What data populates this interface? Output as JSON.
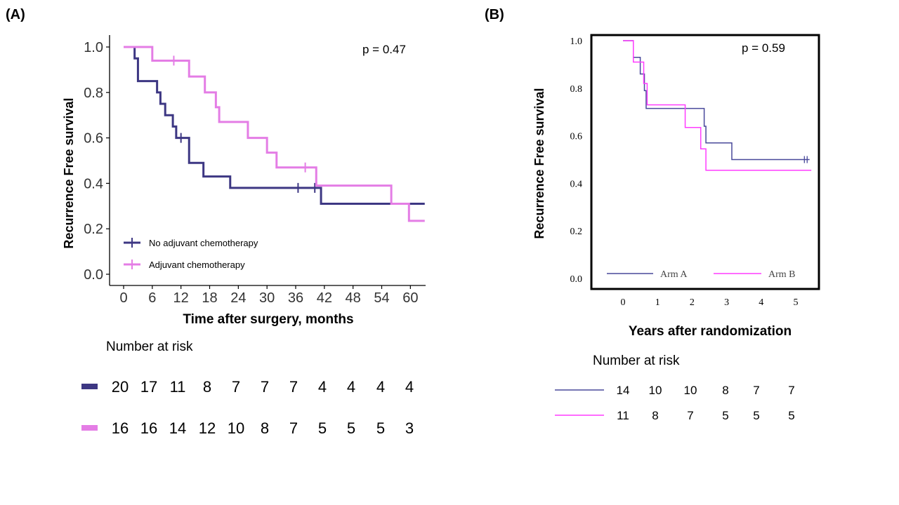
{
  "panels": {
    "a_label": "(A)",
    "b_label": "(B)"
  },
  "colors": {
    "a_s1": "#3d3783",
    "a_s2": "#e47de5",
    "b_s1": "#48489a",
    "b_s2": "#ff3cff"
  },
  "chart_data": [
    {
      "type": "line",
      "title": "",
      "xlabel": "Time after surgery, months",
      "ylabel": "Recurrence Free survival",
      "xlim": [
        -2,
        63
      ],
      "ylim": [
        0,
        1.03
      ],
      "xticks": [
        0,
        6,
        12,
        18,
        24,
        30,
        36,
        42,
        48,
        54,
        60
      ],
      "yticks": [
        0,
        0.2,
        0.4,
        0.6,
        0.8,
        1.0
      ],
      "ytick_labels": [
        "0.0",
        "0.2",
        "0.4",
        "0.6",
        "0.8",
        "1.0"
      ],
      "annotation": "p = 0.47",
      "series": [
        {
          "name": "No adjuvant chemotherapy",
          "color_key": "a_s1",
          "steps": [
            [
              0,
              1.0
            ],
            [
              2.3,
              0.95
            ],
            [
              3,
              0.85
            ],
            [
              7,
              0.8
            ],
            [
              7.7,
              0.75
            ],
            [
              8.7,
              0.7
            ],
            [
              10.3,
              0.65
            ],
            [
              11,
              0.6
            ],
            [
              13.7,
              0.49
            ],
            [
              16.7,
              0.43
            ],
            [
              22.3,
              0.38
            ],
            [
              41.3,
              0.31
            ],
            [
              63,
              0.31
            ]
          ],
          "censor": [
            [
              12,
              0.6
            ],
            [
              36.5,
              0.38
            ],
            [
              40,
              0.38
            ]
          ]
        },
        {
          "name": "Adjuvant chemotherapy",
          "color_key": "a_s2",
          "steps": [
            [
              0,
              1.0
            ],
            [
              6,
              0.94
            ],
            [
              13.7,
              0.87
            ],
            [
              17,
              0.8
            ],
            [
              19.3,
              0.735
            ],
            [
              20,
              0.67
            ],
            [
              26,
              0.6
            ],
            [
              30,
              0.535
            ],
            [
              32,
              0.47
            ],
            [
              40.3,
              0.39
            ],
            [
              56,
              0.31
            ],
            [
              59.7,
              0.235
            ],
            [
              63,
              0.235
            ]
          ],
          "censor": [
            [
              10.5,
              0.94
            ],
            [
              38,
              0.47
            ]
          ]
        }
      ],
      "number_at_risk_title": "Number at risk",
      "number_at_risk": [
        [
          "20",
          "17",
          "11",
          "8",
          "7",
          "7",
          "7",
          "4",
          "4",
          "4",
          "4"
        ],
        [
          "16",
          "16",
          "14",
          "12",
          "10",
          "8",
          "7",
          "5",
          "5",
          "5",
          "3"
        ]
      ]
    },
    {
      "type": "line",
      "title": "",
      "xlabel": "Years after randomization",
      "ylabel": "Recurrence Free survival",
      "xlim": [
        -0.9,
        5.45
      ],
      "ylim": [
        -0.04,
        1.02
      ],
      "xticks": [
        0,
        1,
        2,
        3,
        4,
        5
      ],
      "yticks": [
        0,
        0.2,
        0.4,
        0.6,
        0.8,
        1.0
      ],
      "ytick_labels": [
        "0.0",
        "0.2",
        "0.4",
        "0.6",
        "0.8",
        "1.0"
      ],
      "annotation": "p = 0.59",
      "series": [
        {
          "name": "Arm A",
          "color_key": "b_s1",
          "steps": [
            [
              0,
              1.0
            ],
            [
              0.3,
              0.93
            ],
            [
              0.5,
              0.86
            ],
            [
              0.62,
              0.79
            ],
            [
              0.67,
              0.715
            ],
            [
              2.35,
              0.64
            ],
            [
              2.4,
              0.57
            ],
            [
              3.15,
              0.5
            ],
            [
              5.4,
              0.5
            ]
          ],
          "censor": [
            [
              5.25,
              0.5
            ],
            [
              5.33,
              0.5
            ]
          ]
        },
        {
          "name": "Arm B",
          "color_key": "b_s2",
          "steps": [
            [
              0,
              1.0
            ],
            [
              0.3,
              0.91
            ],
            [
              0.6,
              0.82
            ],
            [
              0.7,
              0.73
            ],
            [
              1.8,
              0.635
            ],
            [
              2.25,
              0.545
            ],
            [
              2.4,
              0.455
            ],
            [
              5.45,
              0.455
            ]
          ],
          "censor": []
        }
      ],
      "number_at_risk_title": "Number at risk",
      "number_at_risk": [
        [
          "14",
          "10",
          "10",
          "8",
          "7",
          "7"
        ],
        [
          "11",
          "8",
          "7",
          "5",
          "5",
          "5"
        ]
      ]
    }
  ]
}
